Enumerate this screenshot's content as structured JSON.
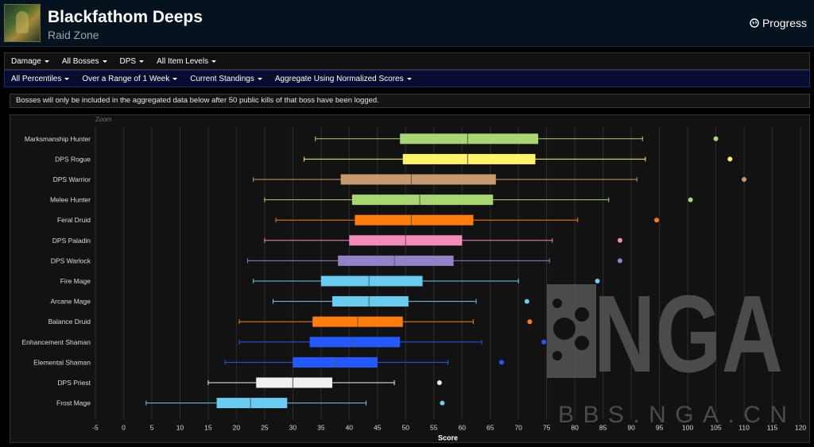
{
  "header": {
    "title": "Blackfathom Deeps",
    "subtitle": "Raid Zone",
    "progress_label": "Progress"
  },
  "menu_primary": [
    {
      "label": "Damage"
    },
    {
      "label": "All Bosses"
    },
    {
      "label": "DPS"
    },
    {
      "label": "All Item Levels"
    }
  ],
  "menu_secondary": [
    {
      "label": "All Percentiles"
    },
    {
      "label": "Over a Range of 1 Week"
    },
    {
      "label": "Current Standings"
    },
    {
      "label": "Aggregate Using Normalized Scores"
    }
  ],
  "notice": "Bosses will only be included in the aggregated data below after 50 public kills of that boss have been logged.",
  "zoom_label": "Zoom",
  "watermark": {
    "logo_text": "NGA",
    "site_text": "BBS.NGA.CN"
  },
  "colors": {
    "background": "#121212",
    "grid": "#2e2e2e",
    "axis_text": "#dddddd"
  },
  "chart_data": {
    "type": "boxplot",
    "orientation": "horizontal",
    "xlabel": "Score",
    "xlim": [
      -5,
      120
    ],
    "xticks": [
      -5,
      0,
      5,
      10,
      15,
      20,
      25,
      30,
      35,
      40,
      45,
      50,
      55,
      60,
      65,
      70,
      75,
      80,
      85,
      90,
      95,
      100,
      105,
      110,
      115,
      120
    ],
    "series": [
      {
        "name": "Marksmanship Hunter",
        "color": "#a8d672",
        "min": 34,
        "q1": 49,
        "median": 61,
        "q3": 73.5,
        "max": 92,
        "outliers": [
          105
        ]
      },
      {
        "name": "DPS Rogue",
        "color": "#fff36b",
        "min": 32,
        "q1": 49.5,
        "median": 61,
        "q3": 73,
        "max": 92.5,
        "outliers": [
          107.5
        ]
      },
      {
        "name": "DPS Warrior",
        "color": "#c69b6d",
        "min": 23,
        "q1": 38.5,
        "median": 51,
        "q3": 66,
        "max": 91,
        "outliers": [
          110
        ]
      },
      {
        "name": "Melee Hunter",
        "color": "#a8d672",
        "min": 25,
        "q1": 40.5,
        "median": 52.5,
        "q3": 65.5,
        "max": 86,
        "outliers": [
          100.5
        ]
      },
      {
        "name": "Feral Druid",
        "color": "#ff7d0a",
        "min": 27,
        "q1": 41,
        "median": 51,
        "q3": 62,
        "max": 80.5,
        "outliers": [
          94.5
        ]
      },
      {
        "name": "DPS Paladin",
        "color": "#f48cba",
        "min": 25,
        "q1": 40,
        "median": 50,
        "q3": 60,
        "max": 76,
        "outliers": [
          88
        ]
      },
      {
        "name": "DPS Warlock",
        "color": "#9482c9",
        "min": 22,
        "q1": 38,
        "median": 48,
        "q3": 58.5,
        "max": 75.5,
        "outliers": [
          88
        ]
      },
      {
        "name": "Fire Mage",
        "color": "#69ccf0",
        "min": 23,
        "q1": 35,
        "median": 43.5,
        "q3": 53,
        "max": 70,
        "outliers": [
          84
        ]
      },
      {
        "name": "Arcane Mage",
        "color": "#69ccf0",
        "min": 26.5,
        "q1": 37,
        "median": 43.5,
        "q3": 50.5,
        "max": 62.5,
        "outliers": [
          71.5
        ]
      },
      {
        "name": "Balance Druid",
        "color": "#ff7d0a",
        "min": 20.5,
        "q1": 33.5,
        "median": 41.5,
        "q3": 49.5,
        "max": 62,
        "outliers": [
          72
        ]
      },
      {
        "name": "Enhancement Shaman",
        "color": "#2459ff",
        "min": 20.5,
        "q1": 33,
        "median": 40.5,
        "q3": 49,
        "max": 63.5,
        "outliers": [
          74.5
        ]
      },
      {
        "name": "Elemental Shaman",
        "color": "#2459ff",
        "min": 18,
        "q1": 30,
        "median": 37.5,
        "q3": 45,
        "max": 57.5,
        "outliers": [
          67
        ]
      },
      {
        "name": "DPS Priest",
        "color": "#f0f0f0",
        "min": 15,
        "q1": 23.5,
        "median": 30,
        "q3": 37,
        "max": 48,
        "outliers": [
          56
        ]
      },
      {
        "name": "Frost Mage",
        "color": "#69ccf0",
        "min": 4,
        "q1": 16.5,
        "median": 22.5,
        "q3": 29,
        "max": 43,
        "outliers": [
          56.5
        ]
      }
    ]
  }
}
